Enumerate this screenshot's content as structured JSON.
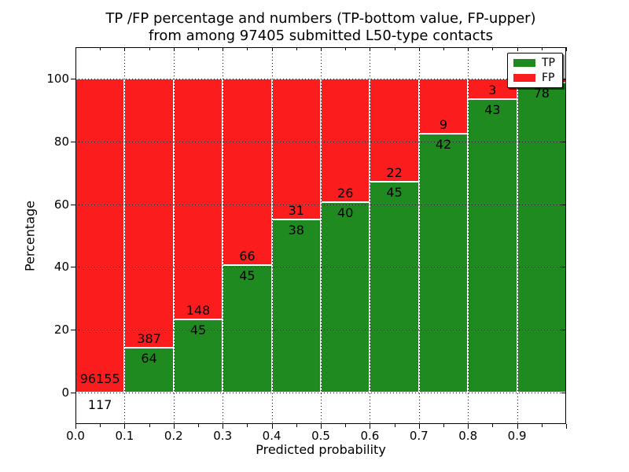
{
  "title": {
    "line1": "TP /FP percentage and numbers (TP-bottom value, FP-upper)",
    "line2": "from among 97405 submitted L50-type contacts"
  },
  "colors": {
    "tp_green": "#1f8a1f",
    "fp_red": "#fb1d1d",
    "background": "#ffffff",
    "grid": "#000000"
  },
  "chart_data": {
    "type": "bar",
    "stacked": true,
    "title": "TP /FP percentage and numbers (TP-bottom value, FP-upper) from among 97405 submitted L50-type contacts",
    "xlabel": "Predicted probability",
    "ylabel": "Percentage",
    "total_submitted": 97405,
    "xlim": [
      0.0,
      1.0
    ],
    "ylim": [
      -10,
      110
    ],
    "x_tick_labels": [
      "0.0",
      "0.1",
      "0.2",
      "0.3",
      "0.4",
      "0.5",
      "0.6",
      "0.7",
      "0.8",
      "0.9"
    ],
    "x_minor_tick_step": 0.05,
    "y_tick_labels": [
      "0",
      "20",
      "40",
      "60",
      "80",
      "100"
    ],
    "grid": "dotted black, horizontal at y ticks and vertical at x ticks, drawn over bars",
    "legend": {
      "position": "upper right",
      "entries": [
        {
          "label": "TP",
          "color": "#1f8a1f"
        },
        {
          "label": "FP",
          "color": "#fb1d1d"
        }
      ]
    },
    "bars": [
      {
        "x0": 0.0,
        "x1": 0.1,
        "tp": 117,
        "fp": 96155,
        "tp_label": "117",
        "fp_label": "96155",
        "tp_pct": 0.12,
        "tp_label_below_axis": true
      },
      {
        "x0": 0.1,
        "x1": 0.2,
        "tp": 64,
        "fp": 387,
        "tp_label": "64",
        "fp_label": "387",
        "tp_pct": 14.19
      },
      {
        "x0": 0.2,
        "x1": 0.3,
        "tp": 45,
        "fp": 148,
        "tp_label": "45",
        "fp_label": "148",
        "tp_pct": 23.32
      },
      {
        "x0": 0.3,
        "x1": 0.4,
        "tp": 45,
        "fp": 66,
        "tp_label": "45",
        "fp_label": "66",
        "tp_pct": 40.54
      },
      {
        "x0": 0.4,
        "x1": 0.5,
        "tp": 38,
        "fp": 31,
        "tp_label": "38",
        "fp_label": "31",
        "tp_pct": 55.07
      },
      {
        "x0": 0.5,
        "x1": 0.6,
        "tp": 40,
        "fp": 26,
        "tp_label": "40",
        "fp_label": "26",
        "tp_pct": 60.61
      },
      {
        "x0": 0.6,
        "x1": 0.7,
        "tp": 45,
        "fp": 22,
        "tp_label": "45",
        "fp_label": "22",
        "tp_pct": 67.16
      },
      {
        "x0": 0.7,
        "x1": 0.8,
        "tp": 42,
        "fp": 9,
        "tp_label": "42",
        "fp_label": "9",
        "tp_pct": 82.35
      },
      {
        "x0": 0.8,
        "x1": 0.9,
        "tp": 43,
        "fp": 3,
        "tp_label": "43",
        "fp_label": "3",
        "tp_pct": 93.48
      },
      {
        "x0": 0.9,
        "x1": 1.0,
        "tp": 78,
        "fp": null,
        "tp_label": "78",
        "fp_label": "",
        "tp_pct": 98.73,
        "fp_label_hidden_by_legend": true
      }
    ]
  }
}
